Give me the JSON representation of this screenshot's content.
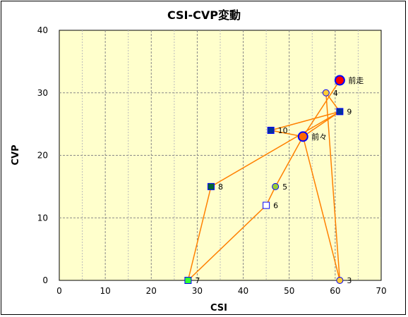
{
  "chart_data": {
    "type": "scatter",
    "title": "CSI-CVP変動",
    "xlabel": "CSI",
    "ylabel": "CVP",
    "xlim": [
      0,
      70
    ],
    "ylim": [
      0,
      40
    ],
    "xticks": [
      "0",
      "10",
      "20",
      "30",
      "40",
      "50",
      "60",
      "70"
    ],
    "yticks": [
      "0",
      "10",
      "20",
      "30",
      "40"
    ],
    "grid": true,
    "plot_bg": "#ffffcc",
    "line_color": "#ff8000",
    "path_order": [
      "前走",
      "前々",
      "10",
      "9",
      "前々",
      "5",
      "6",
      "7",
      "8",
      "9",
      "4",
      "3",
      "前々"
    ],
    "points": [
      {
        "label": "前走",
        "x": 61,
        "y": 32,
        "shape": "circle",
        "fill": "#ff0000",
        "stroke": "#0000ff",
        "size": "large"
      },
      {
        "label": "前々",
        "x": 53,
        "y": 23,
        "shape": "circle",
        "fill": "#ff6600",
        "stroke": "#0000ff",
        "size": "large"
      },
      {
        "label": "3",
        "x": 61,
        "y": 0,
        "shape": "circle",
        "fill": "#ffcc33",
        "stroke": "#0000ff",
        "size": "small"
      },
      {
        "label": "4",
        "x": 58,
        "y": 30,
        "shape": "circle",
        "fill": "#ffcc33",
        "stroke": "#0000ff",
        "size": "small"
      },
      {
        "label": "5",
        "x": 47,
        "y": 15,
        "shape": "circle",
        "fill": "#99cc33",
        "stroke": "#0000ff",
        "size": "small"
      },
      {
        "label": "6",
        "x": 45,
        "y": 12,
        "shape": "square",
        "fill": "#ffffff",
        "stroke": "#0000ff",
        "size": "small"
      },
      {
        "label": "7",
        "x": 28,
        "y": 0,
        "shape": "square",
        "fill": "#33ff33",
        "stroke": "#0000ff",
        "size": "small"
      },
      {
        "label": "8",
        "x": 33,
        "y": 15,
        "shape": "square",
        "fill": "#006633",
        "stroke": "#0000ff",
        "size": "small"
      },
      {
        "label": "9",
        "x": 61,
        "y": 27,
        "shape": "square",
        "fill": "#003399",
        "stroke": "#0000ff",
        "size": "small"
      },
      {
        "label": "10",
        "x": 46,
        "y": 24,
        "shape": "square",
        "fill": "#003399",
        "stroke": "#0000ff",
        "size": "small"
      }
    ]
  }
}
